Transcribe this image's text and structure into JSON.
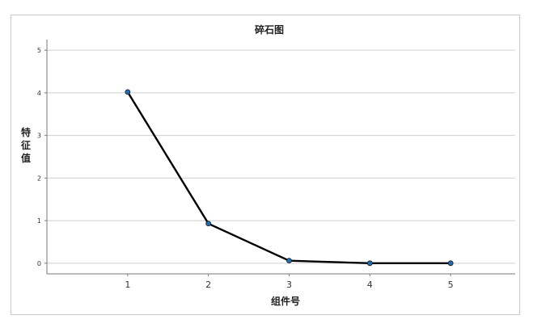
{
  "chart_data": {
    "type": "line",
    "title": "碎石图",
    "xlabel": "组件号",
    "ylabel": "特征值",
    "x": [
      1,
      2,
      3,
      4,
      5
    ],
    "values": [
      4.02,
      0.93,
      0.06,
      0.0,
      0.0
    ],
    "xlim": [
      0.0,
      5.8
    ],
    "ylim": [
      -0.25,
      5.25
    ],
    "yticks": [
      0,
      1,
      2,
      3,
      4,
      5
    ],
    "xticks": [
      1,
      2,
      3,
      4,
      5
    ],
    "grid": "horizontal",
    "line_color": "#000000",
    "marker_color": "#1f6fb5"
  }
}
